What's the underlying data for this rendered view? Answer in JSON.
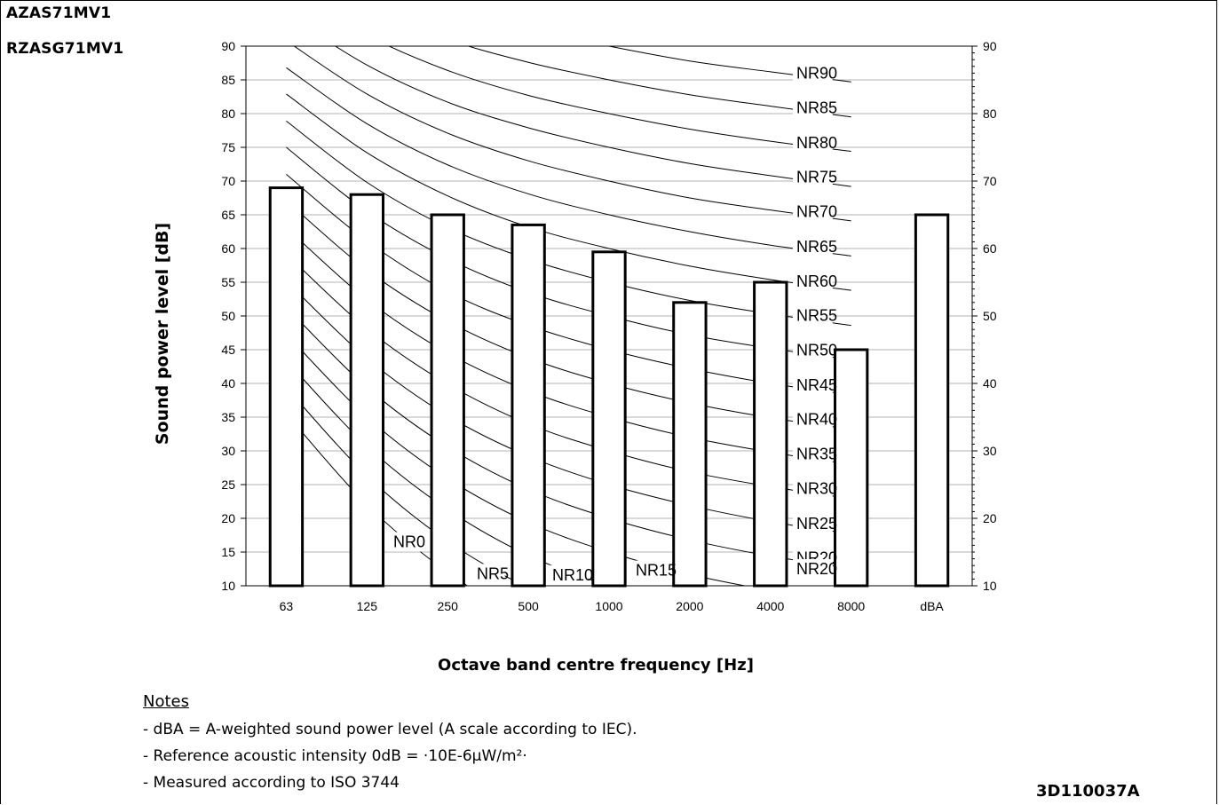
{
  "models": [
    "AZAS71MV1",
    "RZASG71MV1"
  ],
  "notes": {
    "title": "Notes",
    "items": [
      "- dBA = A-weighted sound power level (A scale according to IEC).",
      "- Reference acoustic intensity 0dB = ·10E-6µW/m²·",
      "- Measured according to ISO 3744"
    ]
  },
  "doc_code": "3D110037A",
  "chart_data": {
    "type": "bar",
    "title": "",
    "xlabel": "Octave band centre frequency [Hz]",
    "ylabel": "Sound power level [dB]",
    "ylim": [
      10,
      90
    ],
    "yticks": [
      10,
      15,
      20,
      25,
      30,
      35,
      40,
      45,
      50,
      55,
      60,
      65,
      70,
      75,
      80,
      85,
      90
    ],
    "right_yticks": [
      10,
      20,
      30,
      40,
      50,
      60,
      70,
      80,
      90
    ],
    "categories": [
      "63",
      "125",
      "250",
      "500",
      "1000",
      "2000",
      "4000",
      "8000",
      "dBA"
    ],
    "values": [
      69,
      68,
      65,
      63.5,
      59.5,
      52,
      55,
      45,
      65
    ],
    "grid": true,
    "nr_curves": [
      {
        "label": "NR0",
        "values": [
          35.5,
          22,
          12,
          4.8,
          0,
          -3.5,
          -6.1,
          -8
        ]
      },
      {
        "label": "NR5",
        "values": [
          39.4,
          26.3,
          16.6,
          9.7,
          5,
          1.6,
          -1,
          -2.8
        ]
      },
      {
        "label": "NR10",
        "values": [
          43.4,
          30.7,
          21.3,
          14.5,
          10,
          6.6,
          4.2,
          2.3
        ]
      },
      {
        "label": "NR15",
        "values": [
          47.3,
          35,
          25.9,
          19.4,
          15,
          11.7,
          9.3,
          7.4
        ]
      },
      {
        "label": "NR20",
        "values": [
          51.3,
          39.4,
          30.6,
          24.3,
          20,
          16.8,
          14.4,
          12.6
        ]
      },
      {
        "label": "NR25",
        "values": [
          55.2,
          43.7,
          35.2,
          29.2,
          25,
          21.9,
          19.5,
          17.7
        ]
      },
      {
        "label": "NR30",
        "values": [
          59.2,
          48.1,
          39.9,
          34,
          30,
          26.9,
          24.7,
          22.9
        ]
      },
      {
        "label": "NR35",
        "values": [
          63.1,
          52.4,
          44.5,
          38.9,
          35,
          32,
          29.8,
          28
        ]
      },
      {
        "label": "NR40",
        "values": [
          67.1,
          56.8,
          49.2,
          43.8,
          40,
          37.1,
          34.9,
          33.2
        ]
      },
      {
        "label": "NR45",
        "values": [
          71,
          61.1,
          53.6,
          48.6,
          45,
          42.2,
          40,
          38.3
        ]
      },
      {
        "label": "NR50",
        "values": [
          75,
          65.5,
          58.5,
          53.5,
          50,
          47.2,
          45.2,
          43.5
        ]
      },
      {
        "label": "NR55",
        "values": [
          78.9,
          69.8,
          63.1,
          58.4,
          55,
          52.3,
          50.3,
          48.6
        ]
      },
      {
        "label": "NR60",
        "values": [
          82.9,
          74.2,
          67.8,
          63.2,
          60,
          57.4,
          55.4,
          53.8
        ]
      },
      {
        "label": "NR65",
        "values": [
          86.8,
          78.5,
          72.4,
          68.1,
          65,
          62.5,
          60.5,
          58.9
        ]
      },
      {
        "label": "NR70",
        "values": [
          90.8,
          82.9,
          77.1,
          73,
          70,
          67.5,
          65.7,
          64.1
        ]
      },
      {
        "label": "NR75",
        "values": [
          94.7,
          87.2,
          81.7,
          77.9,
          75,
          72.6,
          70.8,
          69.2
        ]
      },
      {
        "label": "NR80",
        "values": [
          98.7,
          91.6,
          86.4,
          82.7,
          80,
          77.7,
          75.9,
          74.4
        ]
      },
      {
        "label": "NR85",
        "values": [
          102.6,
          95.9,
          91,
          87.6,
          85,
          82.8,
          81.1,
          79.5
        ]
      },
      {
        "label": "NR90",
        "values": [
          106.6,
          100.3,
          95.7,
          92.5,
          90,
          87.8,
          86.2,
          84.7
        ]
      }
    ],
    "colors": {
      "bar_fill": "#ffffff",
      "bar_stroke": "#000000",
      "grid": "#b3b3b3",
      "curve": "#000000"
    }
  }
}
